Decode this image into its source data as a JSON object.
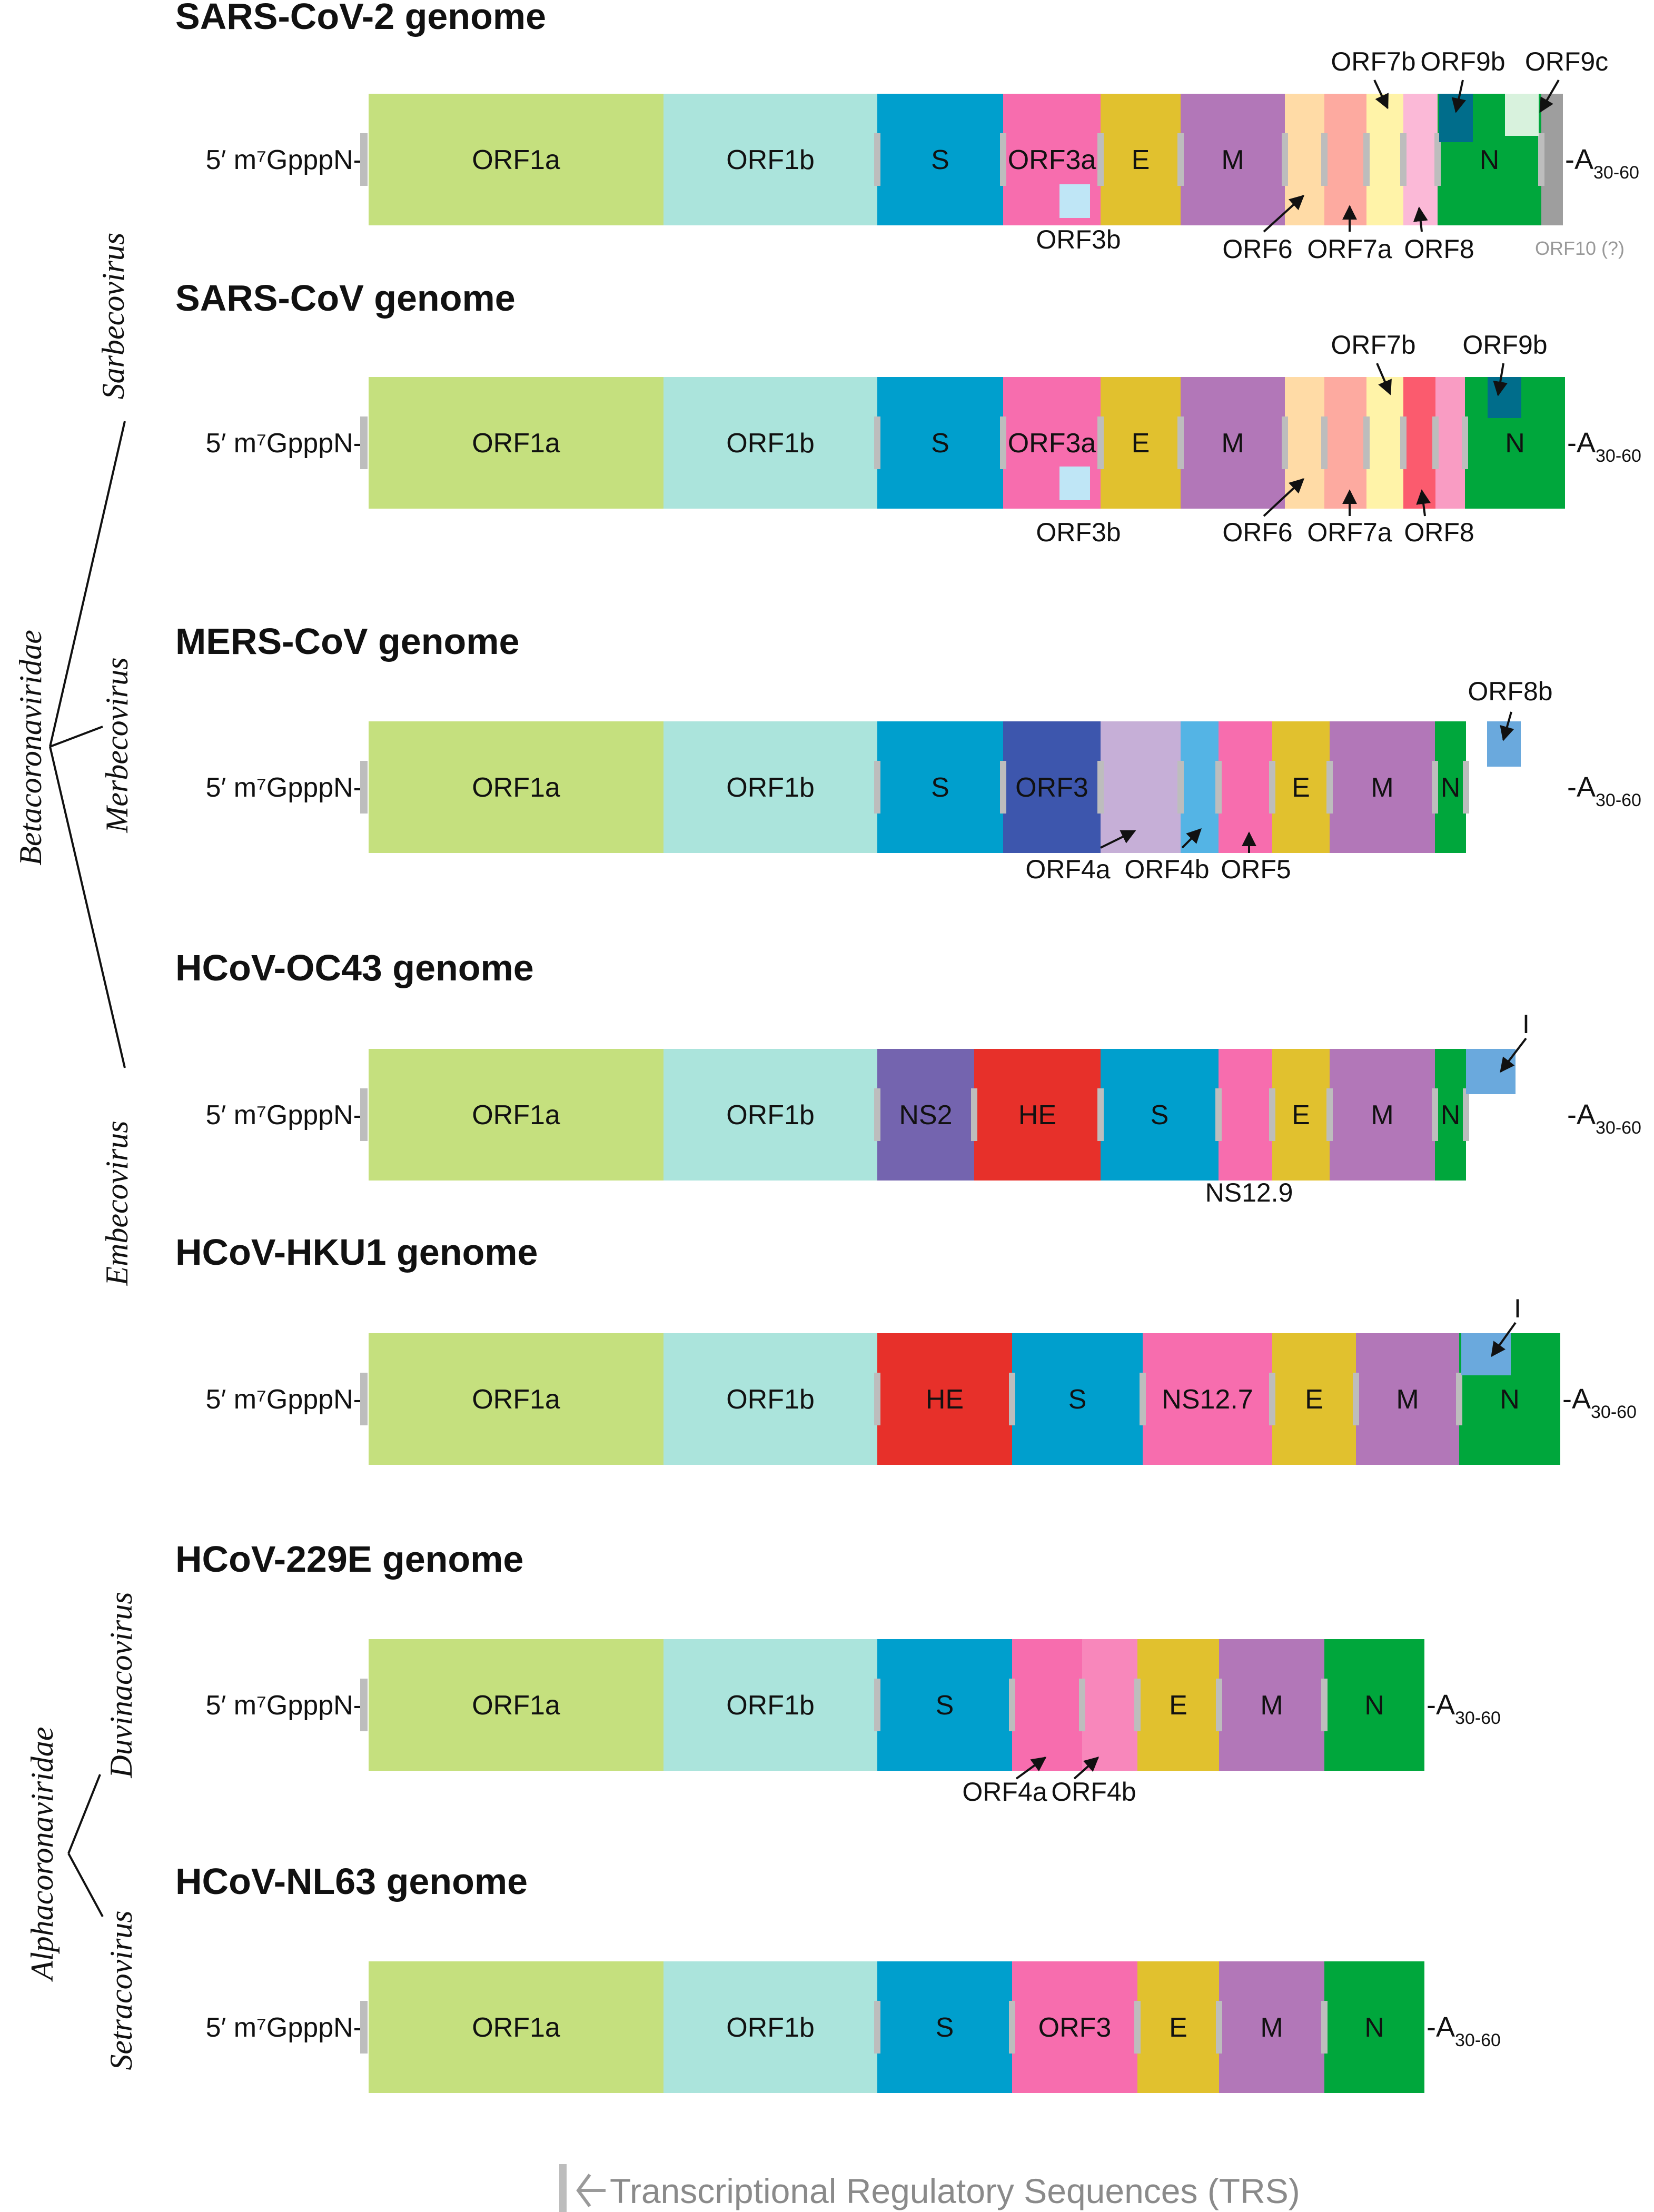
{
  "taxonomy": {
    "families": [
      "Betacoronaviridae",
      "Alphacoronaviridae"
    ],
    "genera": [
      "Sarbecovirus",
      "Merbecovirus",
      "Embecovirus",
      "Duvinacovirus",
      "Setracovirus"
    ]
  },
  "cap_label": "5′ m⁷GpppN-",
  "tail": {
    "base": "-A",
    "sub": "30-60"
  },
  "legend": {
    "text": "Transcriptional Regulatory Sequences (TRS)",
    "trs_color": "#bdbdbd",
    "arrow_color": "#9a9a9a"
  },
  "genomes": [
    {
      "title": "SARS-CoV-2 genome",
      "segments": [
        {
          "label": "ORF1a",
          "color": "#c5e07e"
        },
        {
          "label": "ORF1b",
          "color": "#abe4dc"
        },
        {
          "label": "S",
          "color": "#009fcd"
        },
        {
          "label": "ORF3a",
          "color": "#f76dae"
        },
        {
          "label": "E",
          "color": "#e1c12e"
        },
        {
          "label": "M",
          "color": "#b277b8"
        },
        {
          "label": "",
          "color": "#ffdba6"
        },
        {
          "label": "",
          "color": "#fdaaa0"
        },
        {
          "label": "",
          "color": "#fff3a8"
        },
        {
          "label": "",
          "color": "#fbb9d7"
        },
        {
          "label": "N",
          "color": "#00a73c"
        },
        {
          "label": "",
          "color": "#9e9e9e"
        }
      ],
      "insets": [
        {
          "color": "#bfe6f6"
        },
        {
          "color": "#006d8b"
        },
        {
          "color": "#d8f2dd"
        }
      ],
      "annotations": [
        "ORF3b",
        "ORF6",
        "ORF7a",
        "ORF8",
        "ORF7b",
        "ORF9b",
        "ORF9c",
        "ORF10 (?)"
      ]
    },
    {
      "title": "SARS-CoV genome",
      "segments": [
        {
          "label": "ORF1a",
          "color": "#c5e07e"
        },
        {
          "label": "ORF1b",
          "color": "#abe4dc"
        },
        {
          "label": "S",
          "color": "#009fcd"
        },
        {
          "label": "ORF3a",
          "color": "#f76dae"
        },
        {
          "label": "E",
          "color": "#e1c12e"
        },
        {
          "label": "M",
          "color": "#b277b8"
        },
        {
          "label": "",
          "color": "#ffdba6"
        },
        {
          "label": "",
          "color": "#fdaaa0"
        },
        {
          "label": "",
          "color": "#fff3a8"
        },
        {
          "label": "",
          "color": "#fb5b6e"
        },
        {
          "label": "",
          "color": "#f99cc3"
        },
        {
          "label": "N",
          "color": "#00a73c"
        }
      ],
      "insets": [
        {
          "color": "#bfe6f6"
        },
        {
          "color": "#006d8b"
        }
      ],
      "annotations": [
        "ORF3b",
        "ORF6",
        "ORF7a",
        "ORF8",
        "ORF7b",
        "ORF9b"
      ]
    },
    {
      "title": "MERS-CoV genome",
      "segments": [
        {
          "label": "ORF1a",
          "color": "#c5e07e"
        },
        {
          "label": "ORF1b",
          "color": "#abe4dc"
        },
        {
          "label": "S",
          "color": "#009fcd"
        },
        {
          "label": "ORF3",
          "color": "#3d56ad"
        },
        {
          "label": "",
          "color": "#c6afd7"
        },
        {
          "label": "",
          "color": "#54b4e5"
        },
        {
          "label": "",
          "color": "#f76dae"
        },
        {
          "label": "E",
          "color": "#e1c12e"
        },
        {
          "label": "M",
          "color": "#b277b8"
        },
        {
          "label": "N",
          "color": "#00a73c"
        }
      ],
      "insets": [
        {
          "color": "#6aa9dd"
        }
      ],
      "annotations": [
        "ORF4a",
        "ORF4b",
        "ORF5",
        "ORF8b"
      ]
    },
    {
      "title": "HCoV-OC43 genome",
      "segments": [
        {
          "label": "ORF1a",
          "color": "#c5e07e"
        },
        {
          "label": "ORF1b",
          "color": "#abe4dc"
        },
        {
          "label": "NS2",
          "color": "#7464af"
        },
        {
          "label": "HE",
          "color": "#e7302a"
        },
        {
          "label": "S",
          "color": "#009fcd"
        },
        {
          "label": "",
          "color": "#f76dae"
        },
        {
          "label": "E",
          "color": "#e1c12e"
        },
        {
          "label": "M",
          "color": "#b277b8"
        },
        {
          "label": "N",
          "color": "#00a73c"
        }
      ],
      "insets": [
        {
          "color": "#6aa9dd"
        }
      ],
      "annotations": [
        "NS12.9",
        "I"
      ]
    },
    {
      "title": "HCoV-HKU1 genome",
      "segments": [
        {
          "label": "ORF1a",
          "color": "#c5e07e"
        },
        {
          "label": "ORF1b",
          "color": "#abe4dc"
        },
        {
          "label": "HE",
          "color": "#e7302a"
        },
        {
          "label": "S",
          "color": "#009fcd"
        },
        {
          "label": "NS12.7",
          "color": "#f76dae"
        },
        {
          "label": "E",
          "color": "#e1c12e"
        },
        {
          "label": "M",
          "color": "#b277b8"
        },
        {
          "label": "N",
          "color": "#00a73c"
        }
      ],
      "insets": [
        {
          "color": "#6aa9dd"
        }
      ],
      "annotations": [
        "I"
      ]
    },
    {
      "title": "HCoV-229E genome",
      "segments": [
        {
          "label": "ORF1a",
          "color": "#c5e07e"
        },
        {
          "label": "ORF1b",
          "color": "#abe4dc"
        },
        {
          "label": "S",
          "color": "#009fcd"
        },
        {
          "label": "",
          "color": "#f76dae"
        },
        {
          "label": "",
          "color": "#f887bb"
        },
        {
          "label": "E",
          "color": "#e1c12e"
        },
        {
          "label": "M",
          "color": "#b277b8"
        },
        {
          "label": "N",
          "color": "#00a73c"
        }
      ],
      "insets": [],
      "annotations": [
        "ORF4a",
        "ORF4b"
      ]
    },
    {
      "title": "HCoV-NL63 genome",
      "segments": [
        {
          "label": "ORF1a",
          "color": "#c5e07e"
        },
        {
          "label": "ORF1b",
          "color": "#abe4dc"
        },
        {
          "label": "S",
          "color": "#009fcd"
        },
        {
          "label": "ORF3",
          "color": "#f76dae"
        },
        {
          "label": "E",
          "color": "#e1c12e"
        },
        {
          "label": "M",
          "color": "#b277b8"
        },
        {
          "label": "N",
          "color": "#00a73c"
        }
      ],
      "insets": [],
      "annotations": []
    }
  ]
}
